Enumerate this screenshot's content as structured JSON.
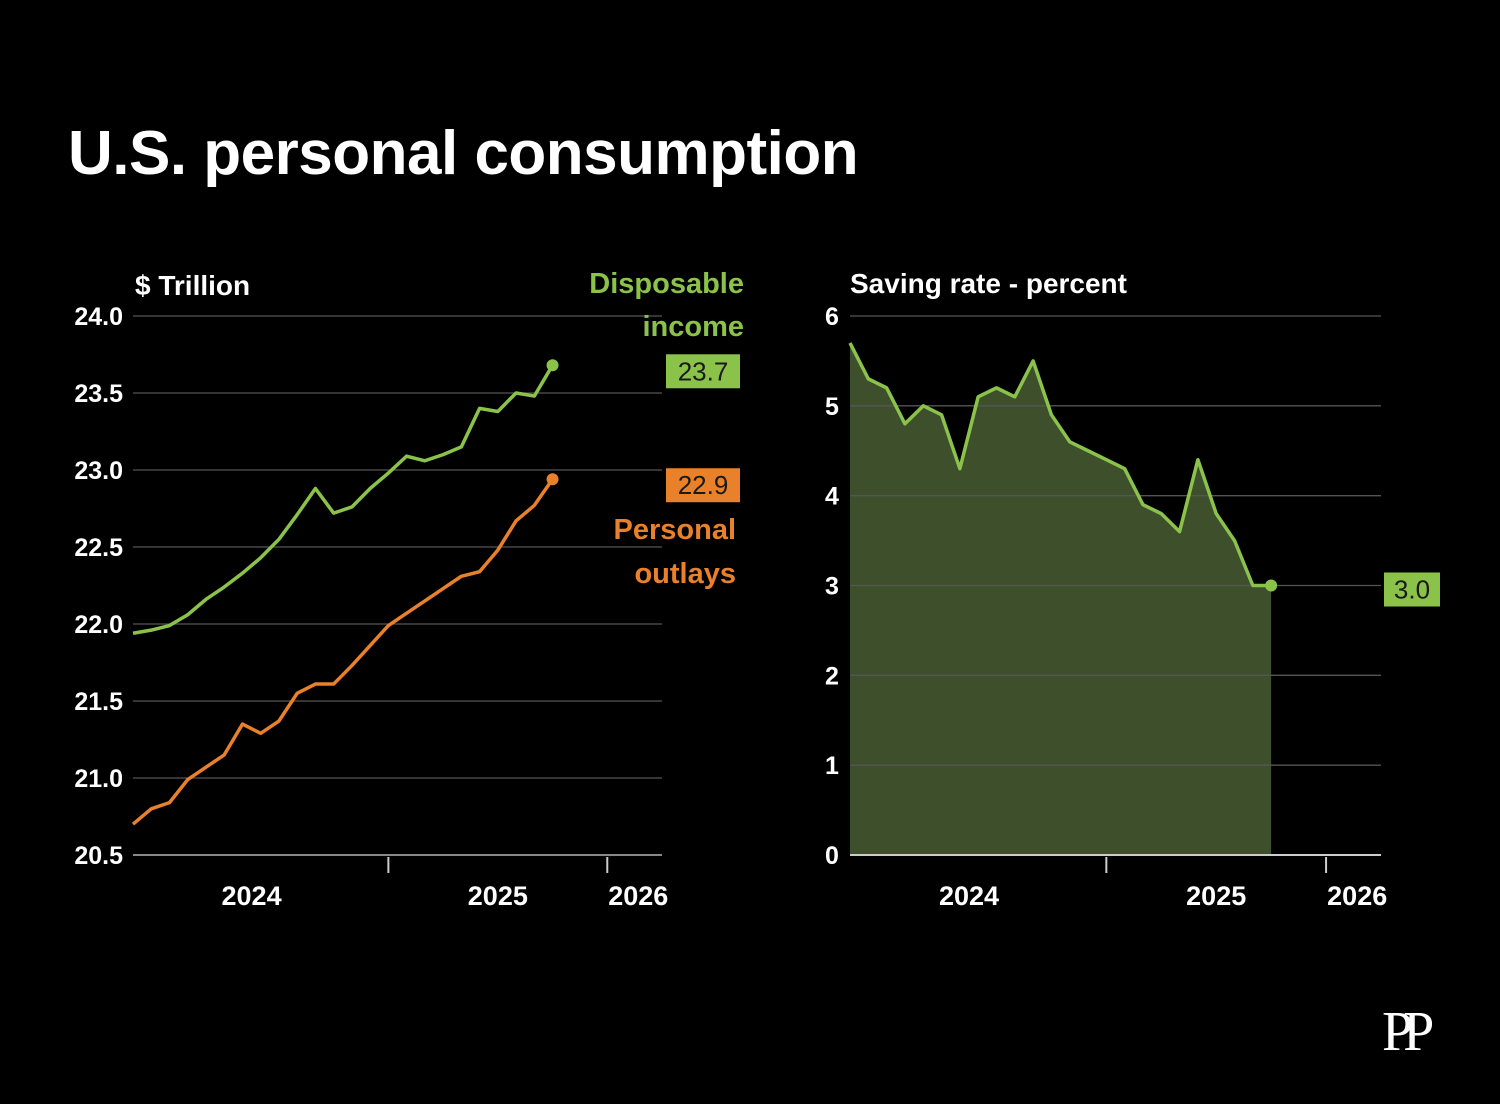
{
  "title": "U.S. personal consumption",
  "logo_text": "PP",
  "colors": {
    "background": "#000000",
    "income": "#8bc34a",
    "outlays": "#e8812a",
    "saving_line": "#8bc34a",
    "saving_fill": "#3e4f2c",
    "grid": "#555555",
    "text": "#ffffff"
  },
  "chart_data": [
    {
      "type": "line",
      "ylabel": "$ Trillion",
      "ylim": [
        20.5,
        24.0
      ],
      "yticks": [
        "24.0",
        "23.5",
        "23.0",
        "22.5",
        "22.0",
        "21.5",
        "21.0",
        "20.5"
      ],
      "x_tick_labels": [
        "2024",
        "2025",
        "2026"
      ],
      "x_year_marks": [
        "2024-12",
        "2025-12"
      ],
      "xlim": [
        "2023-10",
        "2026-03"
      ],
      "x": [
        "2023-10",
        "2023-11",
        "2023-12",
        "2024-01",
        "2024-02",
        "2024-03",
        "2024-04",
        "2024-05",
        "2024-06",
        "2024-07",
        "2024-08",
        "2024-09",
        "2024-10",
        "2024-11",
        "2024-12",
        "2025-01",
        "2025-02",
        "2025-03",
        "2025-04",
        "2025-05",
        "2025-06",
        "2025-07",
        "2025-08",
        "2025-09",
        "2025-10",
        "2025-11",
        "2025-12",
        "2026-01",
        "2026-02"
      ],
      "series": [
        {
          "name": "Disposable income",
          "label_lines": [
            "Disposable",
            "income"
          ],
          "end_label": "23.7",
          "values": [
            21.94,
            21.96,
            21.99,
            22.06,
            22.16,
            22.24,
            22.33,
            22.43,
            22.55,
            22.71,
            22.88,
            22.72,
            22.76,
            22.88,
            22.98,
            23.09,
            23.06,
            23.1,
            23.15,
            23.4,
            23.38,
            23.5,
            23.48,
            23.68,
            null,
            null,
            null,
            null,
            null
          ]
        },
        {
          "name": "Personal outlays",
          "label_lines": [
            "Personal",
            "outlays"
          ],
          "end_label": "22.9",
          "values": [
            20.7,
            20.8,
            20.84,
            20.99,
            21.07,
            21.15,
            21.35,
            21.29,
            21.37,
            21.55,
            21.61,
            21.61,
            21.73,
            21.86,
            21.99,
            22.07,
            22.15,
            22.23,
            22.31,
            22.34,
            22.48,
            22.67,
            22.77,
            22.94,
            null,
            null,
            null,
            null,
            null
          ]
        }
      ]
    },
    {
      "type": "area",
      "title": "Saving rate - percent",
      "ylim": [
        0,
        6
      ],
      "yticks": [
        "6",
        "5",
        "4",
        "3",
        "2",
        "1",
        "0"
      ],
      "x_tick_labels": [
        "2024",
        "2025",
        "2026"
      ],
      "x_year_marks": [
        "2024-12",
        "2025-12"
      ],
      "xlim": [
        "2023-10",
        "2026-03"
      ],
      "x": [
        "2023-10",
        "2023-11",
        "2023-12",
        "2024-01",
        "2024-02",
        "2024-03",
        "2024-04",
        "2024-05",
        "2024-06",
        "2024-07",
        "2024-08",
        "2024-09",
        "2024-10",
        "2024-11",
        "2024-12",
        "2025-01",
        "2025-02",
        "2025-03",
        "2025-04",
        "2025-05",
        "2025-06",
        "2025-07",
        "2025-08",
        "2025-09"
      ],
      "series": [
        {
          "end_label": "3.0",
          "values": [
            5.7,
            5.3,
            5.2,
            4.8,
            5.0,
            4.9,
            4.3,
            5.1,
            5.2,
            5.1,
            5.5,
            4.9,
            4.6,
            4.5,
            4.4,
            4.3,
            3.9,
            3.8,
            3.6,
            4.4,
            3.8,
            3.5,
            3.0,
            3.0
          ]
        }
      ]
    }
  ]
}
